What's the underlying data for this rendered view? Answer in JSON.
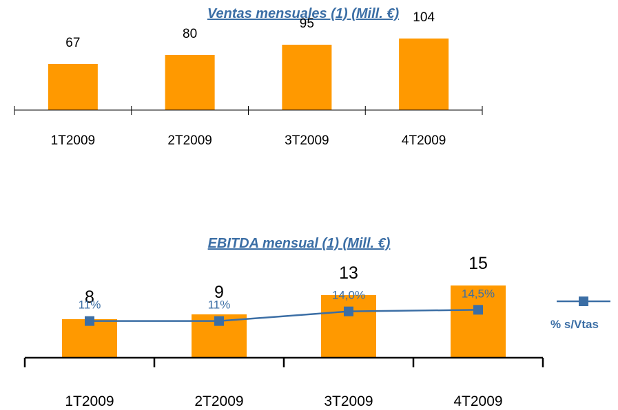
{
  "chart_data": [
    {
      "type": "bar",
      "title": "Ventas mensuales (1) (Mill. €)",
      "categories": [
        "1T2009",
        "2T2009",
        "3T2009",
        "4T2009"
      ],
      "values": [
        67,
        80,
        95,
        104
      ],
      "ylim": [
        0,
        140
      ],
      "bar_color": "#ff9900",
      "grid": false
    },
    {
      "type": "bar",
      "title": "EBITDA mensual (1) (Mill. €)",
      "categories": [
        "1T2009",
        "2T2009",
        "3T2009",
        "4T2009"
      ],
      "values": [
        8,
        9,
        13,
        15
      ],
      "ylim": [
        0,
        20
      ],
      "bar_color": "#ff9900",
      "grid": false,
      "line_series": {
        "name": "% s/Vtas",
        "values": [
          11,
          11,
          14.0,
          14.5
        ],
        "labels": [
          "11%",
          "11%",
          "14,0%",
          "14,5%"
        ],
        "ylim": [
          0,
          30
        ],
        "color": "#3b6ea5"
      },
      "legend_position": "right"
    }
  ]
}
